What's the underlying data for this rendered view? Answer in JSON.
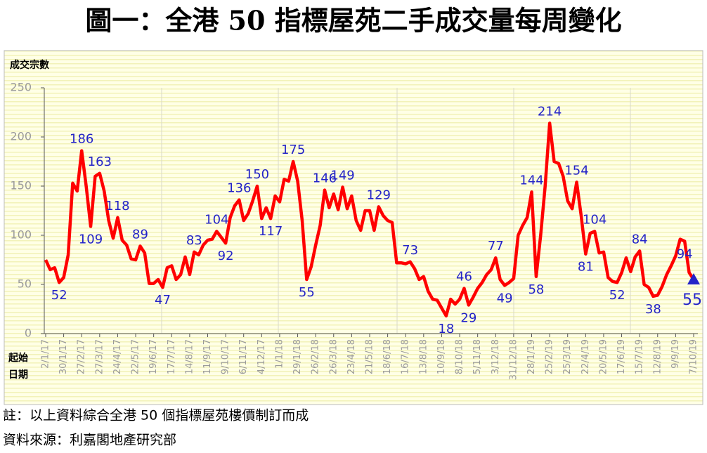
{
  "chart_data": {
    "type": "line",
    "title": "圖一：全港 50 指標屋苑二手成交量每周變化",
    "ylabel": "成交宗數",
    "xlabel": [
      "起始",
      "日期"
    ],
    "notes": [
      "註：以上資料綜合全港 50 個指標屋苑樓價制訂而成",
      "資料來源：利嘉閣地產研究部"
    ],
    "categories": [
      "2/1/17",
      null,
      null,
      null,
      "30/1/17",
      null,
      null,
      null,
      "27/2/17",
      null,
      null,
      null,
      "27/3/17",
      null,
      null,
      null,
      "24/4/17",
      null,
      null,
      null,
      "22/5/17",
      null,
      null,
      null,
      "19/6/17",
      null,
      null,
      null,
      "17/7/17",
      null,
      null,
      null,
      "14/8/17",
      null,
      null,
      null,
      "11/9/17",
      null,
      null,
      null,
      "9/10/17",
      null,
      null,
      null,
      "6/11/17",
      null,
      null,
      null,
      "4/12/17",
      null,
      null,
      null,
      "1/1/18",
      null,
      null,
      null,
      "29/1/18",
      null,
      null,
      null,
      "26/2/18",
      null,
      null,
      null,
      "26/3/18",
      null,
      null,
      null,
      "23/4/18",
      null,
      null,
      null,
      "21/5/18",
      null,
      null,
      null,
      "18/6/18",
      null,
      null,
      null,
      "16/7/18",
      null,
      null,
      null,
      "13/8/18",
      null,
      null,
      null,
      "10/9/18",
      null,
      null,
      null,
      "8/10/18",
      null,
      null,
      null,
      "5/11/18",
      null,
      null,
      null,
      "3/12/18",
      null,
      null,
      null,
      "31/12/18",
      null,
      null,
      null,
      "28/1/19",
      null,
      null,
      null,
      "25/2/19",
      null,
      null,
      null,
      "25/3/19",
      null,
      null,
      null,
      "22/4/19",
      null,
      null,
      null,
      "20/5/19",
      null,
      null,
      null,
      "17/6/19",
      null,
      null,
      null,
      "15/7/19",
      null,
      null,
      null,
      "12/8/19",
      null,
      null,
      null,
      "9/9/19",
      null,
      null,
      null,
      "7/10/19"
    ],
    "series": [
      {
        "color": "#ff0000",
        "values": [
          75,
          65,
          67,
          52,
          57,
          80,
          153,
          145,
          186,
          150,
          109,
          160,
          163,
          145,
          115,
          97,
          118,
          95,
          90,
          76,
          75,
          89,
          82,
          51,
          51,
          55,
          47,
          67,
          69,
          55,
          60,
          78,
          60,
          83,
          80,
          90,
          95,
          96,
          104,
          98,
          92,
          118,
          130,
          136,
          115,
          122,
          135,
          150,
          117,
          128,
          117,
          140,
          134,
          157,
          155,
          175,
          155,
          115,
          55,
          68,
          90,
          110,
          146,
          128,
          142,
          126,
          149,
          127,
          140,
          115,
          105,
          125,
          125,
          105,
          129,
          120,
          115,
          113,
          72,
          72,
          71,
          73,
          66,
          55,
          58,
          43,
          35,
          34,
          26,
          18,
          35,
          30,
          35,
          46,
          29,
          37,
          46,
          52,
          60,
          65,
          77,
          55,
          49,
          52,
          56,
          100,
          110,
          118,
          144,
          58,
          100,
          150,
          214,
          175,
          173,
          160,
          135,
          127,
          154,
          120,
          81,
          102,
          104,
          82,
          83,
          57,
          53,
          52,
          62,
          77,
          63,
          78,
          84,
          50,
          47,
          38,
          39,
          48,
          60,
          69,
          79,
          96,
          94,
          62,
          55
        ],
        "value_labels": [
          null,
          null,
          null,
          52,
          null,
          null,
          null,
          null,
          186,
          null,
          109,
          null,
          163,
          null,
          null,
          null,
          118,
          null,
          null,
          null,
          null,
          89,
          null,
          null,
          null,
          null,
          47,
          null,
          null,
          null,
          null,
          null,
          null,
          83,
          null,
          null,
          null,
          null,
          104,
          null,
          92,
          null,
          null,
          136,
          null,
          null,
          null,
          150,
          null,
          null,
          117,
          null,
          null,
          null,
          null,
          175,
          null,
          null,
          55,
          null,
          null,
          null,
          146,
          null,
          null,
          null,
          149,
          null,
          null,
          null,
          null,
          null,
          null,
          null,
          129,
          null,
          null,
          null,
          null,
          null,
          null,
          73,
          null,
          null,
          null,
          null,
          null,
          null,
          null,
          18,
          null,
          null,
          null,
          46,
          29,
          null,
          null,
          null,
          null,
          null,
          77,
          null,
          49,
          null,
          null,
          null,
          null,
          null,
          144,
          58,
          null,
          null,
          214,
          null,
          null,
          null,
          null,
          null,
          154,
          null,
          81,
          null,
          104,
          null,
          null,
          null,
          null,
          52,
          null,
          null,
          null,
          null,
          84,
          null,
          null,
          38,
          null,
          null,
          null,
          null,
          null,
          null,
          94,
          null,
          55
        ]
      }
    ],
    "label_color": "#2323c8",
    "ylim": [
      0,
      250
    ],
    "yticks": [
      0,
      50,
      100,
      150,
      200,
      250
    ]
  }
}
